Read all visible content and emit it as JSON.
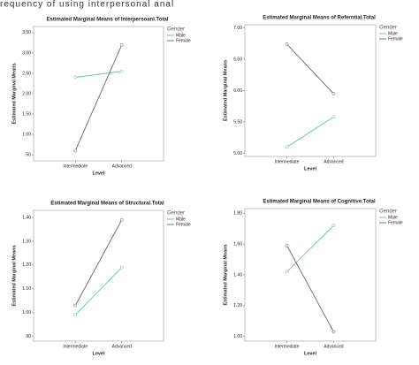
{
  "header_text": "requency of using interpersonal anal",
  "chart_data": [
    {
      "type": "line",
      "title": "Estimated Marginal Means of Interpersoanl.Total",
      "x_label": "Level",
      "y_label": "Estimated Marginal Means",
      "categories": [
        "Intermediate",
        "Advanced"
      ],
      "legend_title": "Gender",
      "series": [
        {
          "name": "Male",
          "color": "#5ab4a8",
          "values": [
            2.4,
            2.55
          ]
        },
        {
          "name": "Female",
          "color": "#555555",
          "values": [
            0.6,
            3.2
          ]
        }
      ],
      "ylim": [
        0.35,
        3.65
      ],
      "yticks": [
        {
          "value": 0.5,
          "label": ".50"
        },
        {
          "value": 1,
          "label": "1.00"
        },
        {
          "value": 1.5,
          "label": "1.50"
        },
        {
          "value": 2,
          "label": "2.00"
        },
        {
          "value": 2.5,
          "label": "2.50"
        },
        {
          "value": 3,
          "label": "3.00"
        },
        {
          "value": 3.5,
          "label": "3.50"
        }
      ]
    },
    {
      "type": "line",
      "title": "Estimated Marginal Means of Referntial.Total",
      "x_label": "Level",
      "y_label": "Estimated Marginal Means",
      "categories": [
        "Intermediate",
        "Advanced"
      ],
      "legend_title": "Gender",
      "series": [
        {
          "name": "Male",
          "color": "#5ab4a8",
          "values": [
            5.1,
            5.58
          ]
        },
        {
          "name": "Female",
          "color": "#555555",
          "values": [
            6.74,
            5.95
          ]
        }
      ],
      "ylim": [
        4.95,
        7.05
      ],
      "yticks": [
        {
          "value": 5,
          "label": "5.00"
        },
        {
          "value": 5.5,
          "label": "5.50"
        },
        {
          "value": 6,
          "label": "6.00"
        },
        {
          "value": 6.5,
          "label": "6.50"
        },
        {
          "value": 7,
          "label": "7.00"
        }
      ]
    },
    {
      "type": "line",
      "title": "Estimated Marginal Means of Structural.Total",
      "x_label": "Level",
      "y_label": "Estimated Marginal Means",
      "categories": [
        "Intermediate",
        "Advanced"
      ],
      "legend_title": "Gender",
      "series": [
        {
          "name": "Male",
          "color": "#5ab4a8",
          "values": [
            0.99,
            1.19
          ]
        },
        {
          "name": "Female",
          "color": "#555555",
          "values": [
            1.03,
            1.39
          ]
        }
      ],
      "ylim": [
        0.88,
        1.43
      ],
      "yticks": [
        {
          "value": 0.9,
          "label": ".90"
        },
        {
          "value": 1,
          "label": "1.00"
        },
        {
          "value": 1.1,
          "label": "1.10"
        },
        {
          "value": 1.2,
          "label": "1.20"
        },
        {
          "value": 1.3,
          "label": "1.30"
        },
        {
          "value": 1.4,
          "label": "1.40"
        }
      ]
    },
    {
      "type": "line",
      "title": "Estimated Marginal Means of Cognitive.Total",
      "x_label": "Level",
      "y_label": "Estimated Marginal Means",
      "categories": [
        "Intermediate",
        "Advanced"
      ],
      "legend_title": "Gender",
      "series": [
        {
          "name": "Male",
          "color": "#5ab4a8",
          "values": [
            1.42,
            1.72
          ]
        },
        {
          "name": "Female",
          "color": "#555555",
          "values": [
            1.59,
            1.03
          ]
        }
      ],
      "ylim": [
        0.97,
        1.83
      ],
      "yticks": [
        {
          "value": 1,
          "label": "1.00"
        },
        {
          "value": 1.2,
          "label": "1.20"
        },
        {
          "value": 1.4,
          "label": "1.40"
        },
        {
          "value": 1.6,
          "label": "1.60"
        },
        {
          "value": 1.8,
          "label": "1.80"
        }
      ]
    }
  ]
}
